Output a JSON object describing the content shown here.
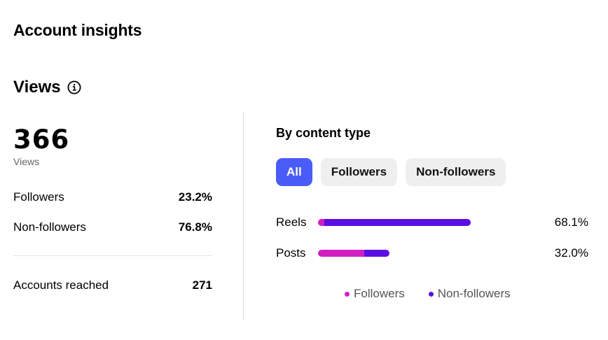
{
  "page": {
    "title": "Account insights"
  },
  "views": {
    "section_title": "Views",
    "total": "366",
    "total_label": "Views",
    "stats": [
      {
        "label": "Followers",
        "value": "23.2%"
      },
      {
        "label": "Non-followers",
        "value": "76.8%"
      }
    ],
    "reached": {
      "label": "Accounts reached",
      "value": "271"
    }
  },
  "content_type": {
    "title": "By content type",
    "filters": [
      "All",
      "Followers",
      "Non-followers"
    ],
    "active_filter": "All",
    "rows": [
      {
        "name": "Reels",
        "percent": "68.1%",
        "total": 68.1,
        "followers_share": 0.04
      },
      {
        "name": "Posts",
        "percent": "32.0%",
        "total": 32.0,
        "followers_share": 0.65
      }
    ],
    "legend": [
      {
        "label": "Followers",
        "color": "#d11ec3"
      },
      {
        "label": "Non-followers",
        "color": "#5b0ee3"
      }
    ]
  },
  "colors": {
    "accent": "#4a5cf7",
    "followers": "#d11ec3",
    "non_followers": "#5b0ee3"
  }
}
